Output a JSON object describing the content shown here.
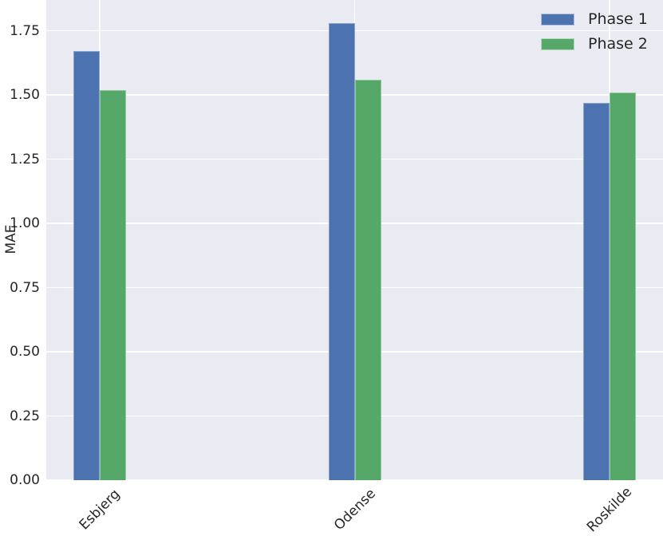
{
  "chart_data": {
    "type": "bar",
    "title": "",
    "xlabel": "",
    "ylabel": "MAE",
    "categories": [
      "Esbjerg",
      "Odense",
      "Roskilde"
    ],
    "series": [
      {
        "name": "Phase 1",
        "color": "#4c72b0",
        "values": [
          1.67,
          1.78,
          1.47
        ]
      },
      {
        "name": "Phase 2",
        "color": "#55a868",
        "values": [
          1.52,
          1.56,
          1.51
        ]
      }
    ],
    "ylim": [
      0,
      1.87
    ],
    "yticks": [
      0.0,
      0.25,
      0.5,
      0.75,
      1.0,
      1.25,
      1.5,
      1.75
    ],
    "ytick_labels": [
      "0.00",
      "0.25",
      "0.50",
      "0.75",
      "1.00",
      "1.25",
      "1.50",
      "1.75"
    ],
    "xtick_rotation_deg": 45,
    "grid": true,
    "legend_position": "upper right",
    "legend_frame": false,
    "style": {
      "plot_background": "#eaeaf2",
      "grid_color": "#ffffff",
      "text_color": "#262626",
      "figure_background": "#ffffff"
    }
  }
}
